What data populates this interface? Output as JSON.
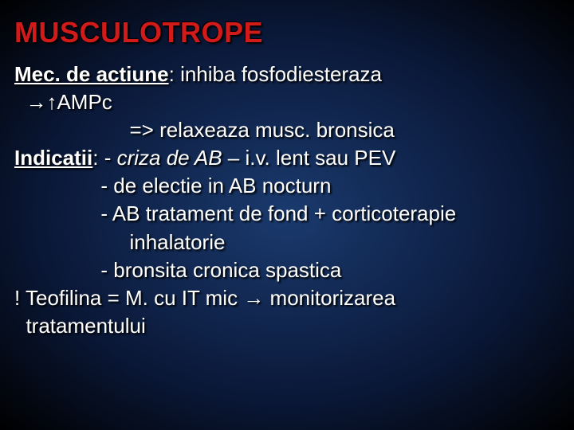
{
  "title": {
    "text": "MUSCULOTROPE",
    "color": "#d11a1a",
    "fontsize": 36,
    "fontweight": 900
  },
  "body": {
    "color": "#ffffff",
    "fontsize": 26,
    "text_shadow": "2px 2px 2px #000000",
    "lines": [
      {
        "segments": [
          {
            "text": "Mec. de actiune",
            "bold": true,
            "underline": true
          },
          {
            "text": ": inhiba fosfodiesteraza"
          }
        ]
      },
      {
        "segments": [
          {
            "text": "  →↑AMPc"
          }
        ]
      },
      {
        "segments": [
          {
            "text": "                    => relaxeaza musc. bronsica"
          }
        ]
      },
      {
        "segments": [
          {
            "text": "Indicatii",
            "bold": true,
            "underline": true
          },
          {
            "text": ": - "
          },
          {
            "text": "criza de AB",
            "italic": true
          },
          {
            "text": " – i.v. lent sau PEV"
          }
        ]
      },
      {
        "segments": [
          {
            "text": "               - de electie in AB nocturn"
          }
        ]
      },
      {
        "segments": [
          {
            "text": "               - AB tratament de fond + corticoterapie"
          }
        ]
      },
      {
        "segments": [
          {
            "text": "                    inhalatorie"
          }
        ]
      },
      {
        "segments": [
          {
            "text": "               - bronsita cronica spastica"
          }
        ]
      },
      {
        "segments": [
          {
            "text": "! Teofilina = M. cu IT mic → monitorizarea"
          }
        ]
      },
      {
        "segments": [
          {
            "text": "  tratamentului"
          }
        ]
      }
    ]
  },
  "background": {
    "gradient_center": "#1a3a6e",
    "gradient_mid": "#0a1838",
    "gradient_edge": "#000000"
  }
}
